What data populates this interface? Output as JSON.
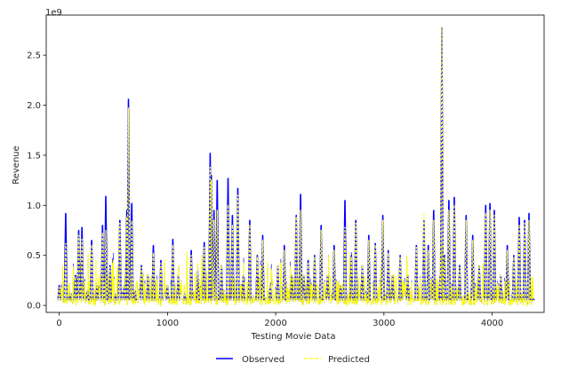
{
  "chart_data": {
    "type": "line",
    "title": "",
    "xlabel": "Testing Movie Data",
    "ylabel": "Revenue",
    "y_offset_label": "1e9",
    "xlim": [
      -120,
      4480
    ],
    "ylim": [
      -0.07,
      2.9
    ],
    "x_ticks": [
      0,
      1000,
      2000,
      3000,
      4000
    ],
    "x_tick_labels": [
      "0",
      "1000",
      "2000",
      "3000",
      "4000"
    ],
    "y_ticks": [
      0.0,
      0.5,
      1.0,
      1.5,
      2.0,
      2.5
    ],
    "y_tick_labels": [
      "0.0",
      "0.5",
      "1.0",
      "1.5",
      "2.0",
      "2.5"
    ],
    "y_unit_scale": 1000000000,
    "legend_position": "below-center",
    "grid": false,
    "series": [
      {
        "name": "Observed",
        "color": "#0000ff",
        "style": "solid",
        "x": [
          0,
          40,
          60,
          100,
          150,
          180,
          210,
          260,
          300,
          350,
          400,
          430,
          470,
          520,
          560,
          600,
          625,
          640,
          670,
          700,
          760,
          820,
          870,
          940,
          1000,
          1050,
          1100,
          1160,
          1220,
          1280,
          1340,
          1395,
          1405,
          1430,
          1460,
          1500,
          1560,
          1600,
          1650,
          1700,
          1760,
          1830,
          1880,
          1950,
          2020,
          2080,
          2150,
          2190,
          2230,
          2260,
          2300,
          2360,
          2420,
          2480,
          2540,
          2600,
          2640,
          2700,
          2740,
          2800,
          2860,
          2920,
          2990,
          3040,
          3080,
          3150,
          3220,
          3300,
          3370,
          3410,
          3460,
          3520,
          3535,
          3560,
          3600,
          3650,
          3700,
          3760,
          3820,
          3880,
          3940,
          3980,
          4020,
          4080,
          4140,
          4200,
          4250,
          4300,
          4340,
          4380
        ],
        "y": [
          0.2,
          0.05,
          0.92,
          0.1,
          0.3,
          0.75,
          0.78,
          0.15,
          0.65,
          0.2,
          0.8,
          1.09,
          0.4,
          0.1,
          0.85,
          0.2,
          0.95,
          2.06,
          1.02,
          0.15,
          0.4,
          0.3,
          0.6,
          0.45,
          0.2,
          0.66,
          0.3,
          0.1,
          0.55,
          0.35,
          0.63,
          1.52,
          1.3,
          0.95,
          1.25,
          0.4,
          1.27,
          0.9,
          1.17,
          0.3,
          0.85,
          0.5,
          0.7,
          0.2,
          0.4,
          0.6,
          0.3,
          0.9,
          1.11,
          0.3,
          0.45,
          0.5,
          0.8,
          0.3,
          0.6,
          0.2,
          1.05,
          0.5,
          0.85,
          0.4,
          0.7,
          0.62,
          0.9,
          0.55,
          0.3,
          0.5,
          0.3,
          0.6,
          0.85,
          0.6,
          0.95,
          0.3,
          2.78,
          0.5,
          1.05,
          1.08,
          0.4,
          0.9,
          0.7,
          0.4,
          1.0,
          1.02,
          0.95,
          0.3,
          0.6,
          0.5,
          0.88,
          0.85,
          0.92,
          0.06
        ]
      },
      {
        "name": "Predicted",
        "color": "#ffff33",
        "style": "dashed",
        "x": [
          0,
          40,
          60,
          100,
          150,
          180,
          210,
          260,
          300,
          350,
          400,
          430,
          470,
          520,
          560,
          600,
          625,
          640,
          670,
          700,
          760,
          820,
          870,
          940,
          1000,
          1050,
          1100,
          1160,
          1220,
          1280,
          1340,
          1395,
          1405,
          1430,
          1460,
          1500,
          1560,
          1600,
          1650,
          1700,
          1760,
          1830,
          1880,
          1950,
          2020,
          2080,
          2150,
          2190,
          2230,
          2260,
          2300,
          2360,
          2420,
          2480,
          2540,
          2600,
          2640,
          2700,
          2740,
          2800,
          2860,
          2920,
          2990,
          3040,
          3080,
          3150,
          3220,
          3300,
          3370,
          3410,
          3460,
          3520,
          3535,
          3560,
          3600,
          3650,
          3700,
          3760,
          3820,
          3880,
          3940,
          3980,
          4020,
          4080,
          4140,
          4200,
          4250,
          4300,
          4340,
          4380
        ],
        "y": [
          0.18,
          0.05,
          0.62,
          0.1,
          0.28,
          0.7,
          0.66,
          0.15,
          0.6,
          0.2,
          0.72,
          0.75,
          0.38,
          0.1,
          0.82,
          0.2,
          0.88,
          1.97,
          0.84,
          0.15,
          0.38,
          0.3,
          0.52,
          0.42,
          0.2,
          0.6,
          0.3,
          0.1,
          0.5,
          0.35,
          0.58,
          1.38,
          1.25,
          0.85,
          0.95,
          0.4,
          1.0,
          0.8,
          1.1,
          0.3,
          0.8,
          0.48,
          0.65,
          0.2,
          0.4,
          0.55,
          0.3,
          0.88,
          0.95,
          0.3,
          0.42,
          0.48,
          0.75,
          0.3,
          0.55,
          0.2,
          0.78,
          0.48,
          0.82,
          0.4,
          0.65,
          0.6,
          0.85,
          0.52,
          0.3,
          0.48,
          0.3,
          0.58,
          0.92,
          0.55,
          0.85,
          0.3,
          2.78,
          0.48,
          0.95,
          1.0,
          0.38,
          0.85,
          0.65,
          0.4,
          0.92,
          0.95,
          0.9,
          0.3,
          0.55,
          0.48,
          0.8,
          0.82,
          0.85,
          0.05
        ]
      }
    ]
  }
}
